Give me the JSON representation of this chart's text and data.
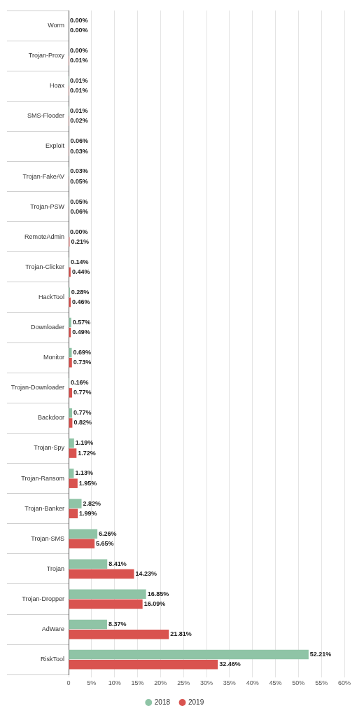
{
  "chart_data": {
    "type": "bar",
    "orientation": "horizontal",
    "categories": [
      "Worm",
      "Trojan-Proxy",
      "Hoax",
      "SMS-Flooder",
      "Exploit",
      "Trojan-FakeAV",
      "Trojan-PSW",
      "RemoteAdmin",
      "Trojan-Clicker",
      "HackTool",
      "Downloader",
      "Monitor",
      "Trojan-Downloader",
      "Backdoor",
      "Trojan-Spy",
      "Trojan-Ransom",
      "Trojan-Banker",
      "Trojan-SMS",
      "Trojan",
      "Trojan-Dropper",
      "AdWare",
      "RiskTool"
    ],
    "series": [
      {
        "name": "2018",
        "color": "#8fc4a6",
        "values": [
          0.0,
          0.0,
          0.01,
          0.01,
          0.06,
          0.03,
          0.05,
          0.0,
          0.14,
          0.28,
          0.57,
          0.69,
          0.16,
          0.77,
          1.19,
          1.13,
          2.82,
          6.26,
          8.41,
          16.85,
          8.37,
          52.21
        ],
        "value_labels": [
          "0.00%",
          "0.00%",
          "0.01%",
          "0.01%",
          "0.06%",
          "0.03%",
          "0.05%",
          "0.00%",
          "0.14%",
          "0.28%",
          "0.57%",
          "0.69%",
          "0.16%",
          "0.77%",
          "1.19%",
          "1.13%",
          "2.82%",
          "6.26%",
          "8.41%",
          "16.85%",
          "8.37%",
          "52.21%"
        ]
      },
      {
        "name": "2019",
        "color": "#d9534f",
        "values": [
          0.0,
          0.01,
          0.01,
          0.02,
          0.03,
          0.05,
          0.06,
          0.21,
          0.44,
          0.46,
          0.49,
          0.73,
          0.77,
          0.82,
          1.72,
          1.95,
          1.99,
          5.65,
          14.23,
          16.09,
          21.81,
          32.46
        ],
        "value_labels": [
          "0.00%",
          "0.01%",
          "0.01%",
          "0.02%",
          "0.03%",
          "0.05%",
          "0.06%",
          "0.21%",
          "0.44%",
          "0.46%",
          "0.49%",
          "0.73%",
          "0.77%",
          "0.82%",
          "1.72%",
          "1.95%",
          "1.99%",
          "5.65%",
          "14.23%",
          "16.09%",
          "21.81%",
          "32.46%"
        ]
      }
    ],
    "xlim": [
      0,
      60
    ],
    "xticks": [
      0,
      {
        "value": 5,
        "label": "5%"
      },
      {
        "value": 10,
        "label": "10%"
      },
      {
        "value": 15,
        "label": "15%"
      },
      {
        "value": 20,
        "label": "20%"
      },
      {
        "value": 25,
        "label": "25%"
      },
      {
        "value": 30,
        "label": "30%"
      },
      {
        "value": 35,
        "label": "35%"
      },
      {
        "value": 40,
        "label": "40%"
      },
      {
        "value": 45,
        "label": "45%"
      },
      {
        "value": 50,
        "label": "50%"
      },
      {
        "value": 55,
        "label": "55%"
      },
      {
        "value": 60,
        "label": "60%"
      }
    ],
    "grid": "x",
    "legend": "bottom"
  }
}
